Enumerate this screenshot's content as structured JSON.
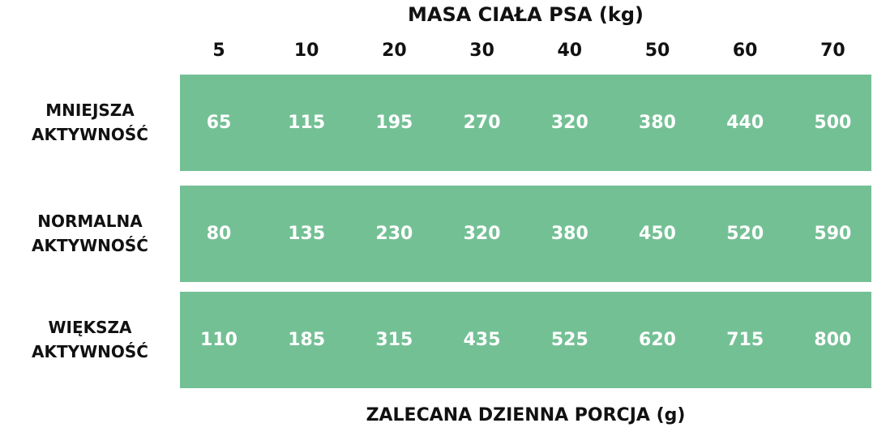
{
  "chart_data": {
    "type": "table",
    "title": "MASA CIAŁA PSA (kg)",
    "footer": "ZALECANA DZIENNA PORCJA (g)",
    "columns": [
      "5",
      "10",
      "20",
      "30",
      "40",
      "50",
      "60",
      "70"
    ],
    "rows": [
      {
        "label_line1": "MNIEJSZA",
        "label_line2": "AKTYWNOŚĆ",
        "values": [
          65,
          115,
          195,
          270,
          320,
          380,
          440,
          500
        ]
      },
      {
        "label_line1": "NORMALNA",
        "label_line2": "AKTYWNOŚĆ",
        "values": [
          80,
          135,
          230,
          320,
          380,
          450,
          520,
          590
        ]
      },
      {
        "label_line1": "WIĘKSZA",
        "label_line2": "AKTYWNOŚĆ",
        "values": [
          110,
          185,
          315,
          435,
          525,
          620,
          715,
          800
        ]
      }
    ],
    "band_color": "#74c095"
  }
}
